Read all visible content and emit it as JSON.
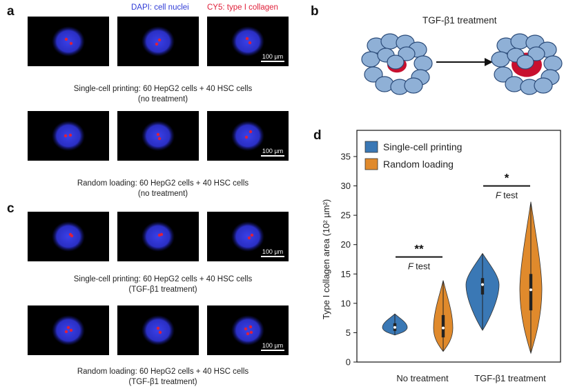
{
  "panel_a": {
    "letter": "a",
    "stain_blue": "DAPI: cell nuclei",
    "stain_red": "CY5: type I collagen",
    "scalebar_label": "100 µm",
    "caption_row1_line1": "Single-cell printing: 60 HepG2 cells + 40 HSC cells",
    "caption_row1_line2": "(no treatment)",
    "caption_row2_line1": "Random loading: 60 HepG2 cells + 40 HSC cells",
    "caption_row2_line2": "(no treatment)"
  },
  "panel_b": {
    "letter": "b",
    "title": "TGF-β1 treatment"
  },
  "panel_c": {
    "letter": "c",
    "scalebar_label": "100 µm",
    "caption_row1_line1": "Single-cell printing: 60 HepG2 cells + 40 HSC cells",
    "caption_row1_line2": "(TGF-β1 treatment)",
    "caption_row2_line1": "Random loading: 60 HepG2 cells + 40 HSC cells",
    "caption_row2_line2": "(TGF-β1 treatment)"
  },
  "panel_d": {
    "letter": "d"
  },
  "colors": {
    "blue_stain": "#2f3bd6",
    "red_stain": "#e0203a",
    "cell_blue": "#8fb0d6",
    "core_red": "#c8102e",
    "series_blue": "#3a78b5",
    "series_orange": "#e08a2c"
  },
  "chart_data": {
    "type": "violin",
    "title": "",
    "xlabel": "",
    "ylabel": "Type I collagen area (10² µm²)",
    "ylim": [
      0,
      35
    ],
    "yticks": [
      0,
      5,
      10,
      15,
      20,
      25,
      30,
      35
    ],
    "categories": [
      "No treatment",
      "TGF-β1 treatment"
    ],
    "legend_position": "top-left",
    "series": [
      {
        "name": "Single-cell printing",
        "color": "#3a78b5",
        "distributions": [
          {
            "min": 4.6,
            "q1": 5.3,
            "median": 5.9,
            "q3": 6.6,
            "max": 8.2
          },
          {
            "min": 5.4,
            "q1": 11.5,
            "median": 13.2,
            "q3": 14.3,
            "max": 18.5
          }
        ]
      },
      {
        "name": "Random loading",
        "color": "#e08a2c",
        "distributions": [
          {
            "min": 1.8,
            "q1": 4.2,
            "median": 5.8,
            "q3": 8.0,
            "max": 13.9
          },
          {
            "min": 1.5,
            "q1": 8.8,
            "median": 12.3,
            "q3": 15.0,
            "max": 27.3
          }
        ]
      }
    ],
    "annotations": [
      {
        "category": "No treatment",
        "stars": "**",
        "test": "test",
        "test_letter": "F"
      },
      {
        "category": "TGF-β1 treatment",
        "stars": "*",
        "test": "test",
        "test_letter": "F"
      }
    ]
  }
}
